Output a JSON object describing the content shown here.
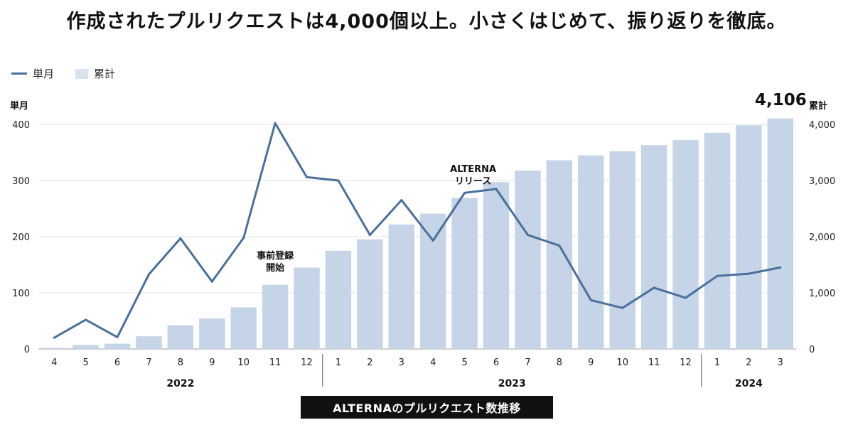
{
  "title": "作成されたプルリクエストは4,000個以上。小さくはじめて、振り返りを徹底。",
  "legend": {
    "monthly_label": "単月",
    "cumulative_label": "累計"
  },
  "axes": {
    "left_title": "単月",
    "right_title": "累計"
  },
  "total_label": "4,106",
  "caption": "ALTERNAのプルリクエスト数推移",
  "colors": {
    "line": "#4a709c",
    "bar": "#c5d4e6",
    "legend_bar": "#d7e3ef"
  },
  "chart_data": {
    "type": "bar+line",
    "categories": [
      "4",
      "5",
      "6",
      "7",
      "8",
      "9",
      "10",
      "11",
      "12",
      "1",
      "2",
      "3",
      "4",
      "5",
      "6",
      "7",
      "8",
      "9",
      "10",
      "11",
      "12",
      "1",
      "2",
      "3"
    ],
    "years": [
      {
        "label": "2022",
        "start": 0,
        "end": 8
      },
      {
        "label": "2023",
        "start": 9,
        "end": 20
      },
      {
        "label": "2024",
        "start": 21,
        "end": 23
      }
    ],
    "monthly": [
      20,
      52,
      21,
      133,
      197,
      120,
      198,
      402,
      306,
      300,
      203,
      265,
      193,
      278,
      285,
      203,
      184,
      87,
      73,
      109,
      91,
      130,
      134,
      145
    ],
    "cumulative": [
      20,
      72,
      93,
      226,
      423,
      543,
      741,
      1143,
      1449,
      1749,
      1952,
      2217,
      2410,
      2688,
      2973,
      3176,
      3360,
      3447,
      3520,
      3629,
      3720,
      3850,
      3984,
      4106
    ],
    "left_axis": {
      "min": 0,
      "max": 400,
      "ticks": [
        0,
        100,
        200,
        300,
        400
      ],
      "tick_labels": [
        "0",
        "100",
        "200",
        "300",
        "400"
      ]
    },
    "right_axis": {
      "min": 0,
      "max": 4000,
      "ticks": [
        0,
        1000,
        2000,
        3000,
        4000
      ],
      "tick_labels": [
        "0",
        "1,000",
        "2,000",
        "3,000",
        "4,000"
      ]
    },
    "annotations": [
      {
        "index": 7,
        "lines": [
          "事前登録",
          "開始"
        ]
      },
      {
        "index": 13,
        "lines": [
          "ALTERNA",
          "リリース"
        ]
      }
    ],
    "legend_position": "top-left",
    "grid": true
  }
}
